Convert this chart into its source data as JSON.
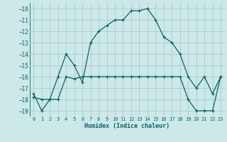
{
  "xlabel": "Humidex (Indice chaleur)",
  "bg_color": "#cce8e8",
  "grid_color": "#aacccc",
  "line_color": "#006666",
  "line1_x": [
    0,
    1,
    2,
    3,
    4,
    5,
    6,
    7,
    8,
    9,
    10,
    11,
    12,
    13,
    14,
    15,
    16,
    17,
    18,
    19,
    20,
    21,
    22,
    23
  ],
  "line1_y": [
    -17.5,
    -19.0,
    -18.0,
    -16.0,
    -14.0,
    -15.0,
    -16.5,
    -13.0,
    -12.0,
    -11.5,
    -11.0,
    -11.0,
    -10.2,
    -10.2,
    -10.0,
    -11.0,
    -12.5,
    -13.0,
    -14.0,
    -16.0,
    -17.0,
    -16.0,
    -17.5,
    -16.0
  ],
  "line2_x": [
    0,
    1,
    2,
    3,
    4,
    5,
    6,
    7,
    8,
    9,
    10,
    11,
    12,
    13,
    14,
    15,
    16,
    17,
    18,
    19,
    20,
    21,
    22,
    23
  ],
  "line2_y": [
    -17.8,
    -18.0,
    -18.0,
    -18.0,
    -16.0,
    -16.2,
    -16.0,
    -16.0,
    -16.0,
    -16.0,
    -16.0,
    -16.0,
    -16.0,
    -16.0,
    -16.0,
    -16.0,
    -16.0,
    -16.0,
    -16.0,
    -18.0,
    -19.0,
    -19.0,
    -19.0,
    -16.0
  ],
  "xlim": [
    -0.5,
    23.5
  ],
  "ylim": [
    -19.5,
    -9.5
  ],
  "yticks": [
    -10,
    -11,
    -12,
    -13,
    -14,
    -15,
    -16,
    -17,
    -18,
    -19
  ],
  "xticks": [
    0,
    1,
    2,
    3,
    4,
    5,
    6,
    7,
    8,
    9,
    10,
    11,
    12,
    13,
    14,
    15,
    16,
    17,
    18,
    19,
    20,
    21,
    22,
    23
  ]
}
